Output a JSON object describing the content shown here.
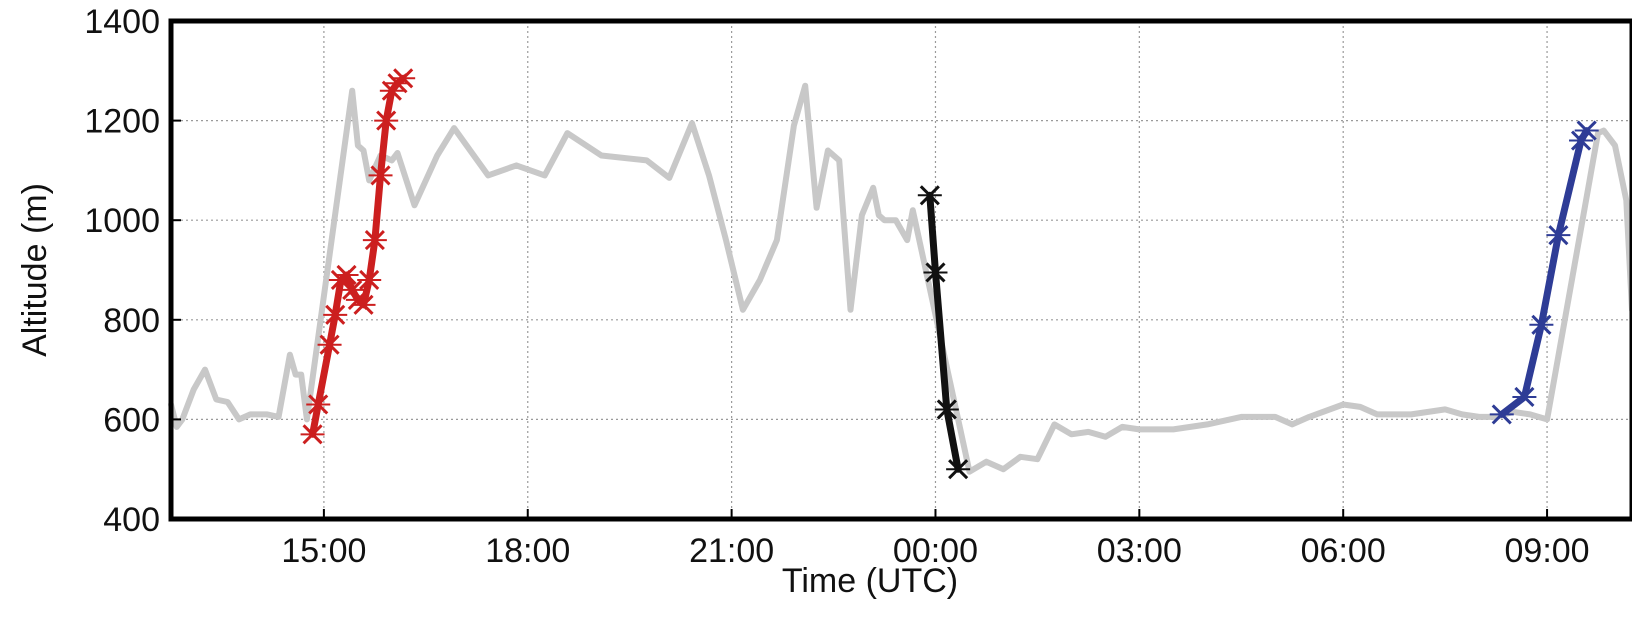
{
  "chart_data": {
    "type": "line",
    "title": "",
    "xlabel": "Time (UTC)",
    "ylabel": "Altitude (m)",
    "xlim_hours": [
      12.75,
      34.25
    ],
    "ylim": [
      400,
      1400
    ],
    "grid": true,
    "x_ticks": [
      {
        "label": "15:00",
        "hour": 15
      },
      {
        "label": "18:00",
        "hour": 18
      },
      {
        "label": "21:00",
        "hour": 21
      },
      {
        "label": "00:00",
        "hour": 24
      },
      {
        "label": "03:00",
        "hour": 27
      },
      {
        "label": "06:00",
        "hour": 30
      },
      {
        "label": "09:00",
        "hour": 33
      }
    ],
    "y_ticks": [
      400,
      600,
      800,
      1000,
      1200,
      1400
    ],
    "series": [
      {
        "color": "#c8c8c8",
        "marker": "none",
        "points": [
          [
            "12:45",
            630
          ],
          [
            "12:50",
            585
          ],
          [
            "12:55",
            600
          ],
          [
            "13:05",
            660
          ],
          [
            "13:15",
            700
          ],
          [
            "13:25",
            640
          ],
          [
            "13:35",
            635
          ],
          [
            "13:45",
            600
          ],
          [
            "13:55",
            610
          ],
          [
            "14:10",
            610
          ],
          [
            "14:20",
            605
          ],
          [
            "14:30",
            730
          ],
          [
            "14:35",
            690
          ],
          [
            "14:40",
            690
          ],
          [
            "14:45",
            600
          ],
          [
            "15:25",
            1260
          ],
          [
            "15:30",
            1150
          ],
          [
            "15:35",
            1140
          ],
          [
            "15:40",
            1080
          ],
          [
            "15:50",
            1130
          ],
          [
            "16:00",
            1120
          ],
          [
            "16:05",
            1135
          ],
          [
            "16:20",
            1030
          ],
          [
            "16:40",
            1130
          ],
          [
            "16:55",
            1185
          ],
          [
            "17:25",
            1090
          ],
          [
            "17:50",
            1110
          ],
          [
            "18:15",
            1090
          ],
          [
            "18:35",
            1175
          ],
          [
            "19:05",
            1130
          ],
          [
            "19:45",
            1120
          ],
          [
            "20:05",
            1085
          ],
          [
            "20:25",
            1195
          ],
          [
            "20:40",
            1090
          ],
          [
            "20:55",
            960
          ],
          [
            "21:10",
            820
          ],
          [
            "21:25",
            880
          ],
          [
            "21:40",
            960
          ],
          [
            "21:55",
            1190
          ],
          [
            "22:05",
            1270
          ],
          [
            "22:15",
            1025
          ],
          [
            "22:25",
            1140
          ],
          [
            "22:35",
            1120
          ],
          [
            "22:45",
            820
          ],
          [
            "22:55",
            1010
          ],
          [
            "23:05",
            1065
          ],
          [
            "23:10",
            1010
          ],
          [
            "23:15",
            1000
          ],
          [
            "23:25",
            1000
          ],
          [
            "23:35",
            960
          ],
          [
            "23:40",
            1020
          ],
          [
            "00:30",
            495
          ],
          [
            "00:45",
            515
          ],
          [
            "01:00",
            500
          ],
          [
            "01:15",
            525
          ],
          [
            "01:30",
            520
          ],
          [
            "01:45",
            590
          ],
          [
            "02:00",
            570
          ],
          [
            "02:15",
            575
          ],
          [
            "02:30",
            565
          ],
          [
            "02:45",
            585
          ],
          [
            "03:00",
            580
          ],
          [
            "03:30",
            580
          ],
          [
            "04:00",
            590
          ],
          [
            "04:30",
            605
          ],
          [
            "05:00",
            605
          ],
          [
            "05:15",
            590
          ],
          [
            "05:30",
            605
          ],
          [
            "06:00",
            630
          ],
          [
            "06:15",
            625
          ],
          [
            "06:30",
            610
          ],
          [
            "07:00",
            610
          ],
          [
            "07:30",
            620
          ],
          [
            "07:45",
            610
          ],
          [
            "08:00",
            605
          ],
          [
            "08:15",
            605
          ],
          [
            "08:30",
            615
          ],
          [
            "08:45",
            610
          ],
          [
            "09:00",
            600
          ],
          [
            "09:45",
            1175
          ],
          [
            "09:50",
            1180
          ],
          [
            "10:00",
            1150
          ],
          [
            "10:10",
            1040
          ],
          [
            "10:15",
            820
          ]
        ]
      },
      {
        "color": "#cc1f1f",
        "marker": "x",
        "points": [
          [
            "14:50",
            570
          ],
          [
            "14:55",
            630
          ],
          [
            "15:05",
            750
          ],
          [
            "15:10",
            810
          ],
          [
            "15:15",
            880
          ],
          [
            "15:20",
            890
          ],
          [
            "15:25",
            860
          ],
          [
            "15:30",
            840
          ],
          [
            "15:35",
            830
          ],
          [
            "15:40",
            880
          ],
          [
            "15:45",
            960
          ],
          [
            "15:50",
            1090
          ],
          [
            "15:55",
            1200
          ],
          [
            "16:00",
            1260
          ],
          [
            "16:05",
            1275
          ],
          [
            "16:10",
            1285
          ]
        ]
      },
      {
        "color": "#111111",
        "marker": "x",
        "points": [
          [
            "23:55",
            1050
          ],
          [
            "00:00",
            895
          ],
          [
            "00:10",
            620
          ],
          [
            "00:20",
            500
          ]
        ]
      },
      {
        "color": "#2e3c96",
        "marker": "x",
        "points": [
          [
            "08:20",
            610
          ],
          [
            "08:40",
            645
          ],
          [
            "08:55",
            790
          ],
          [
            "09:10",
            970
          ],
          [
            "09:30",
            1160
          ],
          [
            "09:35",
            1180
          ]
        ]
      }
    ]
  }
}
